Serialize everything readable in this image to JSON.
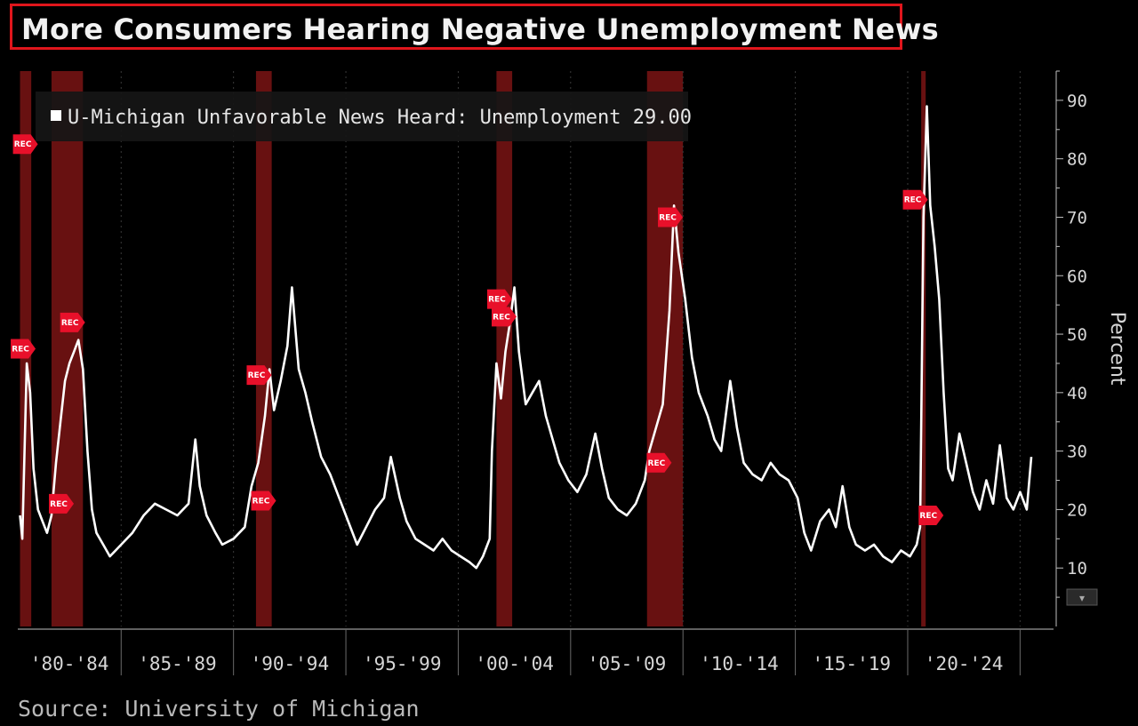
{
  "title": "More Consumers Hearing Negative Unemployment News",
  "source": "Source: University of Michigan",
  "colors": {
    "background": "#000000",
    "line": "#ffffff",
    "recession": "#7a1414",
    "rec_marker": "#e8102a",
    "title_border": "#e0161c"
  },
  "chart_data": {
    "type": "line",
    "ylabel": "Percent",
    "ylim": [
      0,
      95
    ],
    "yticks": [
      "10",
      "20",
      "30",
      "40",
      "50",
      "60",
      "70",
      "80",
      "90"
    ],
    "xlim": [
      1979.9,
      2025.0
    ],
    "x_ticks": [
      "'80-'84",
      "'85-'89",
      "'90-'94",
      "'95-'99",
      "'00-'04",
      "'05-'09",
      "'10-'14",
      "'15-'19",
      "'20-'24"
    ],
    "legend": {
      "label": "U-Michigan Unfavorable News Heard: Unemployment 29.00",
      "placement": "top-left"
    },
    "recessions": [
      [
        1980.0,
        1980.5
      ],
      [
        1981.4,
        1982.8
      ],
      [
        1990.5,
        1991.2
      ],
      [
        2001.2,
        2001.9
      ],
      [
        2007.9,
        2009.5
      ],
      [
        2020.1,
        2020.3
      ]
    ],
    "rec_markers": [
      {
        "x": 1980.2,
        "y": 82.5,
        "label": "REC"
      },
      {
        "x": 1980.1,
        "y": 47.5,
        "label": "REC"
      },
      {
        "x": 1981.8,
        "y": 21.0,
        "label": "REC"
      },
      {
        "x": 1982.3,
        "y": 52.0,
        "label": "REC"
      },
      {
        "x": 1990.6,
        "y": 43.0,
        "label": "REC"
      },
      {
        "x": 1990.8,
        "y": 21.5,
        "label": "REC"
      },
      {
        "x": 2001.3,
        "y": 56.0,
        "label": "REC"
      },
      {
        "x": 2001.5,
        "y": 53.0,
        "label": "REC"
      },
      {
        "x": 2008.4,
        "y": 28.0,
        "label": "REC"
      },
      {
        "x": 2008.9,
        "y": 70.0,
        "label": "REC"
      },
      {
        "x": 2019.8,
        "y": 73.0,
        "label": "REC"
      },
      {
        "x": 2020.5,
        "y": 19.0,
        "label": "REC"
      }
    ],
    "series": [
      {
        "name": "U-Michigan Unfavorable News Heard: Unemployment",
        "last_value": 29.0,
        "points": [
          [
            1980.0,
            19
          ],
          [
            1980.1,
            15
          ],
          [
            1980.2,
            30
          ],
          [
            1980.3,
            45
          ],
          [
            1980.45,
            40
          ],
          [
            1980.6,
            27
          ],
          [
            1980.8,
            20
          ],
          [
            1981.0,
            18
          ],
          [
            1981.2,
            16
          ],
          [
            1981.4,
            19
          ],
          [
            1981.6,
            28
          ],
          [
            1981.8,
            35
          ],
          [
            1982.0,
            42
          ],
          [
            1982.2,
            45
          ],
          [
            1982.4,
            47
          ],
          [
            1982.6,
            49
          ],
          [
            1982.8,
            44
          ],
          [
            1983.0,
            30
          ],
          [
            1983.2,
            20
          ],
          [
            1983.4,
            16
          ],
          [
            1983.7,
            14
          ],
          [
            1984.0,
            12
          ],
          [
            1984.5,
            14
          ],
          [
            1985.0,
            16
          ],
          [
            1985.5,
            19
          ],
          [
            1986.0,
            21
          ],
          [
            1986.5,
            20
          ],
          [
            1987.0,
            19
          ],
          [
            1987.5,
            21
          ],
          [
            1987.8,
            32
          ],
          [
            1988.0,
            24
          ],
          [
            1988.3,
            19
          ],
          [
            1988.7,
            16
          ],
          [
            1989.0,
            14
          ],
          [
            1989.5,
            15
          ],
          [
            1990.0,
            17
          ],
          [
            1990.3,
            24
          ],
          [
            1990.6,
            28
          ],
          [
            1990.9,
            36
          ],
          [
            1991.1,
            44
          ],
          [
            1991.3,
            37
          ],
          [
            1991.6,
            42
          ],
          [
            1991.9,
            48
          ],
          [
            1992.1,
            58
          ],
          [
            1992.4,
            44
          ],
          [
            1992.7,
            40
          ],
          [
            1993.0,
            35
          ],
          [
            1993.4,
            29
          ],
          [
            1993.8,
            26
          ],
          [
            1994.2,
            22
          ],
          [
            1994.6,
            18
          ],
          [
            1995.0,
            14
          ],
          [
            1995.4,
            17
          ],
          [
            1995.8,
            20
          ],
          [
            1996.2,
            22
          ],
          [
            1996.5,
            29
          ],
          [
            1996.9,
            22
          ],
          [
            1997.2,
            18
          ],
          [
            1997.6,
            15
          ],
          [
            1998.0,
            14
          ],
          [
            1998.4,
            13
          ],
          [
            1998.8,
            15
          ],
          [
            1999.2,
            13
          ],
          [
            1999.6,
            12
          ],
          [
            2000.0,
            11
          ],
          [
            2000.3,
            10
          ],
          [
            2000.6,
            12
          ],
          [
            2000.9,
            15
          ],
          [
            2001.0,
            30
          ],
          [
            2001.2,
            45
          ],
          [
            2001.4,
            39
          ],
          [
            2001.6,
            47
          ],
          [
            2001.8,
            52
          ],
          [
            2002.0,
            58
          ],
          [
            2002.2,
            47
          ],
          [
            2002.5,
            38
          ],
          [
            2002.8,
            40
          ],
          [
            2003.1,
            42
          ],
          [
            2003.4,
            36
          ],
          [
            2003.7,
            32
          ],
          [
            2004.0,
            28
          ],
          [
            2004.4,
            25
          ],
          [
            2004.8,
            23
          ],
          [
            2005.2,
            26
          ],
          [
            2005.6,
            33
          ],
          [
            2005.9,
            27
          ],
          [
            2006.2,
            22
          ],
          [
            2006.6,
            20
          ],
          [
            2007.0,
            19
          ],
          [
            2007.4,
            21
          ],
          [
            2007.8,
            25
          ],
          [
            2008.0,
            30
          ],
          [
            2008.3,
            34
          ],
          [
            2008.6,
            38
          ],
          [
            2008.9,
            54
          ],
          [
            2009.1,
            72
          ],
          [
            2009.3,
            64
          ],
          [
            2009.6,
            56
          ],
          [
            2009.9,
            46
          ],
          [
            2010.2,
            40
          ],
          [
            2010.6,
            36
          ],
          [
            2010.9,
            32
          ],
          [
            2011.2,
            30
          ],
          [
            2011.6,
            42
          ],
          [
            2011.9,
            34
          ],
          [
            2012.2,
            28
          ],
          [
            2012.6,
            26
          ],
          [
            2013.0,
            25
          ],
          [
            2013.4,
            28
          ],
          [
            2013.8,
            26
          ],
          [
            2014.2,
            25
          ],
          [
            2014.6,
            22
          ],
          [
            2014.9,
            16
          ],
          [
            2015.2,
            13
          ],
          [
            2015.6,
            18
          ],
          [
            2016.0,
            20
          ],
          [
            2016.3,
            17
          ],
          [
            2016.6,
            24
          ],
          [
            2016.9,
            17
          ],
          [
            2017.2,
            14
          ],
          [
            2017.6,
            13
          ],
          [
            2018.0,
            14
          ],
          [
            2018.4,
            12
          ],
          [
            2018.8,
            11
          ],
          [
            2019.2,
            13
          ],
          [
            2019.6,
            12
          ],
          [
            2019.9,
            14
          ],
          [
            2020.05,
            17
          ],
          [
            2020.2,
            70
          ],
          [
            2020.35,
            89
          ],
          [
            2020.5,
            72
          ],
          [
            2020.7,
            65
          ],
          [
            2020.9,
            56
          ],
          [
            2021.1,
            40
          ],
          [
            2021.3,
            27
          ],
          [
            2021.5,
            25
          ],
          [
            2021.8,
            33
          ],
          [
            2022.1,
            28
          ],
          [
            2022.4,
            23
          ],
          [
            2022.7,
            20
          ],
          [
            2023.0,
            25
          ],
          [
            2023.3,
            21
          ],
          [
            2023.6,
            31
          ],
          [
            2023.9,
            22
          ],
          [
            2024.2,
            20
          ],
          [
            2024.5,
            23
          ],
          [
            2024.8,
            20
          ],
          [
            2025.0,
            29
          ]
        ]
      }
    ]
  }
}
